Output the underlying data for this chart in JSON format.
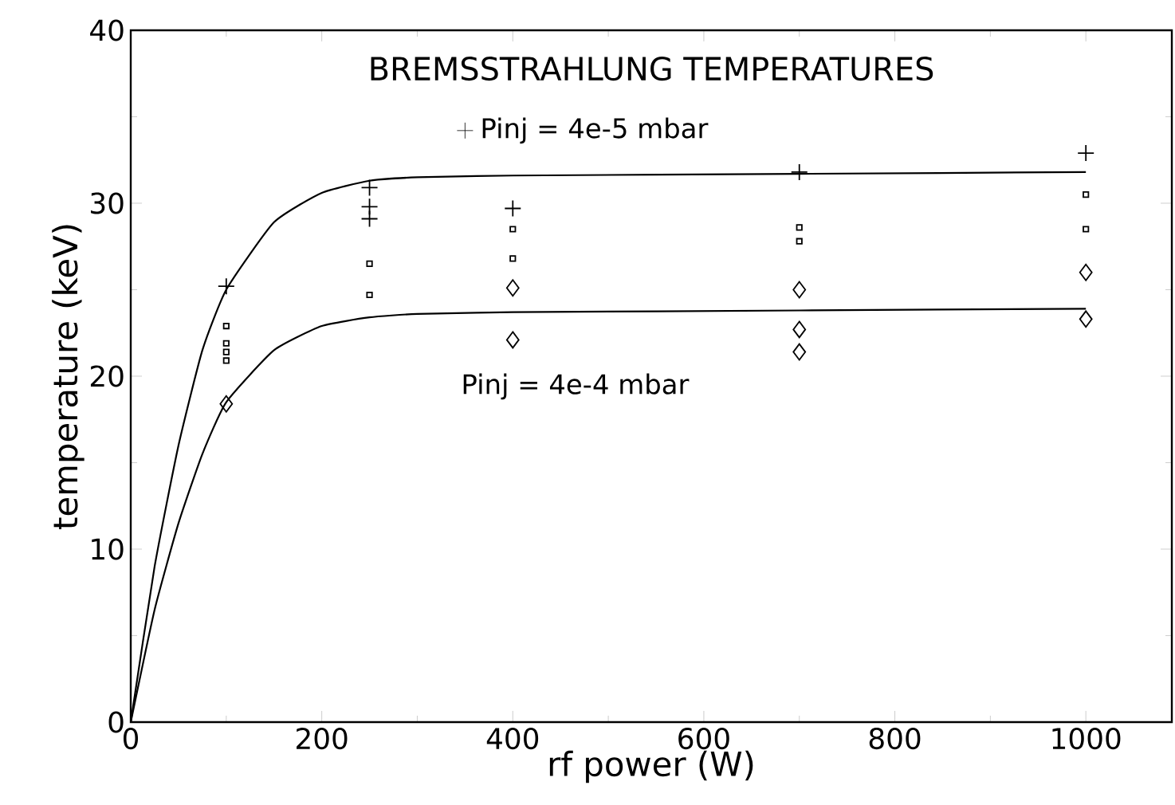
{
  "chart_data": {
    "type": "scatter",
    "title": "BREMSSTRAHLUNG TEMPERATURES",
    "xlabel": "rf power (W)",
    "ylabel": "temperature (keV)",
    "xlim": [
      0,
      1090
    ],
    "ylim": [
      0,
      40
    ],
    "xticks": [
      0,
      200,
      400,
      600,
      800,
      1000
    ],
    "yticks": [
      0,
      10,
      20,
      30,
      40
    ],
    "grid": false,
    "legend": "top",
    "series": [
      {
        "name": "Pinj = 4e-5 mbar",
        "marker": "cross",
        "color": "#000000",
        "x": [
          100,
          250,
          250,
          250,
          400,
          700,
          1000
        ],
        "values": [
          25.2,
          30.9,
          29.8,
          29.1,
          29.7,
          31.8,
          32.9
        ]
      },
      {
        "marker": "square",
        "color": "#000000",
        "x": [
          100,
          100,
          100,
          100,
          250,
          250,
          400,
          400,
          700,
          700,
          1000,
          1000
        ],
        "values": [
          22.9,
          21.9,
          21.4,
          20.9,
          26.5,
          24.7,
          28.5,
          26.8,
          28.6,
          27.8,
          30.5,
          28.5
        ]
      },
      {
        "name": "Pinj = 4e-4 mbar",
        "marker": "diamond",
        "color": "#000000",
        "x": [
          100,
          400,
          400,
          700,
          700,
          700,
          1000,
          1000
        ],
        "values": [
          18.4,
          25.1,
          22.1,
          25.0,
          22.7,
          21.4,
          26.0,
          23.3
        ]
      },
      {
        "type": "line",
        "line_style": "solid",
        "marker": "none",
        "color": "#000000",
        "x": [
          0,
          25,
          50,
          75,
          100,
          150,
          200,
          250,
          300,
          400,
          700,
          1000
        ],
        "values": [
          0,
          9,
          16,
          21.5,
          25,
          28.9,
          30.6,
          31.3,
          31.5,
          31.6,
          31.7,
          31.8
        ]
      },
      {
        "type": "line",
        "line_style": "solid",
        "marker": "none",
        "color": "#000000",
        "x": [
          0,
          25,
          50,
          75,
          100,
          150,
          200,
          250,
          300,
          400,
          700,
          1000
        ],
        "values": [
          0,
          6.5,
          11.5,
          15.5,
          18.5,
          21.5,
          22.9,
          23.4,
          23.6,
          23.7,
          23.8,
          23.9
        ]
      }
    ]
  }
}
